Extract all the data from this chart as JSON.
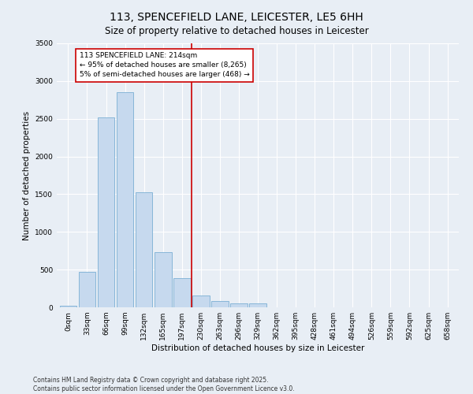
{
  "title_line1": "113, SPENCEFIELD LANE, LEICESTER, LE5 6HH",
  "title_line2": "Size of property relative to detached houses in Leicester",
  "xlabel": "Distribution of detached houses by size in Leicester",
  "ylabel": "Number of detached properties",
  "bar_color": "#c6d9ee",
  "bar_edge_color": "#7aafd4",
  "background_color": "#e8eef5",
  "grid_color": "#ffffff",
  "categories": [
    "0sqm",
    "33sqm",
    "66sqm",
    "99sqm",
    "132sqm",
    "165sqm",
    "197sqm",
    "230sqm",
    "263sqm",
    "296sqm",
    "329sqm",
    "362sqm",
    "395sqm",
    "428sqm",
    "461sqm",
    "494sqm",
    "526sqm",
    "559sqm",
    "592sqm",
    "625sqm",
    "658sqm"
  ],
  "values": [
    20,
    470,
    2520,
    2850,
    1530,
    730,
    390,
    155,
    80,
    55,
    50,
    0,
    0,
    0,
    0,
    0,
    0,
    0,
    0,
    0,
    0
  ],
  "vline_x": 6.5,
  "annotation_text": "113 SPENCEFIELD LANE: 214sqm\n← 95% of detached houses are smaller (8,265)\n5% of semi-detached houses are larger (468) →",
  "annotation_box_color": "#ffffff",
  "annotation_border_color": "#cc0000",
  "vline_color": "#cc0000",
  "ylim": [
    0,
    3500
  ],
  "yticks": [
    0,
    500,
    1000,
    1500,
    2000,
    2500,
    3000,
    3500
  ],
  "footer_line1": "Contains HM Land Registry data © Crown copyright and database right 2025.",
  "footer_line2": "Contains public sector information licensed under the Open Government Licence v3.0.",
  "title_fontsize": 10,
  "subtitle_fontsize": 8.5,
  "axis_label_fontsize": 7.5,
  "tick_fontsize": 6.5,
  "annotation_fontsize": 6.5,
  "footer_fontsize": 5.5
}
